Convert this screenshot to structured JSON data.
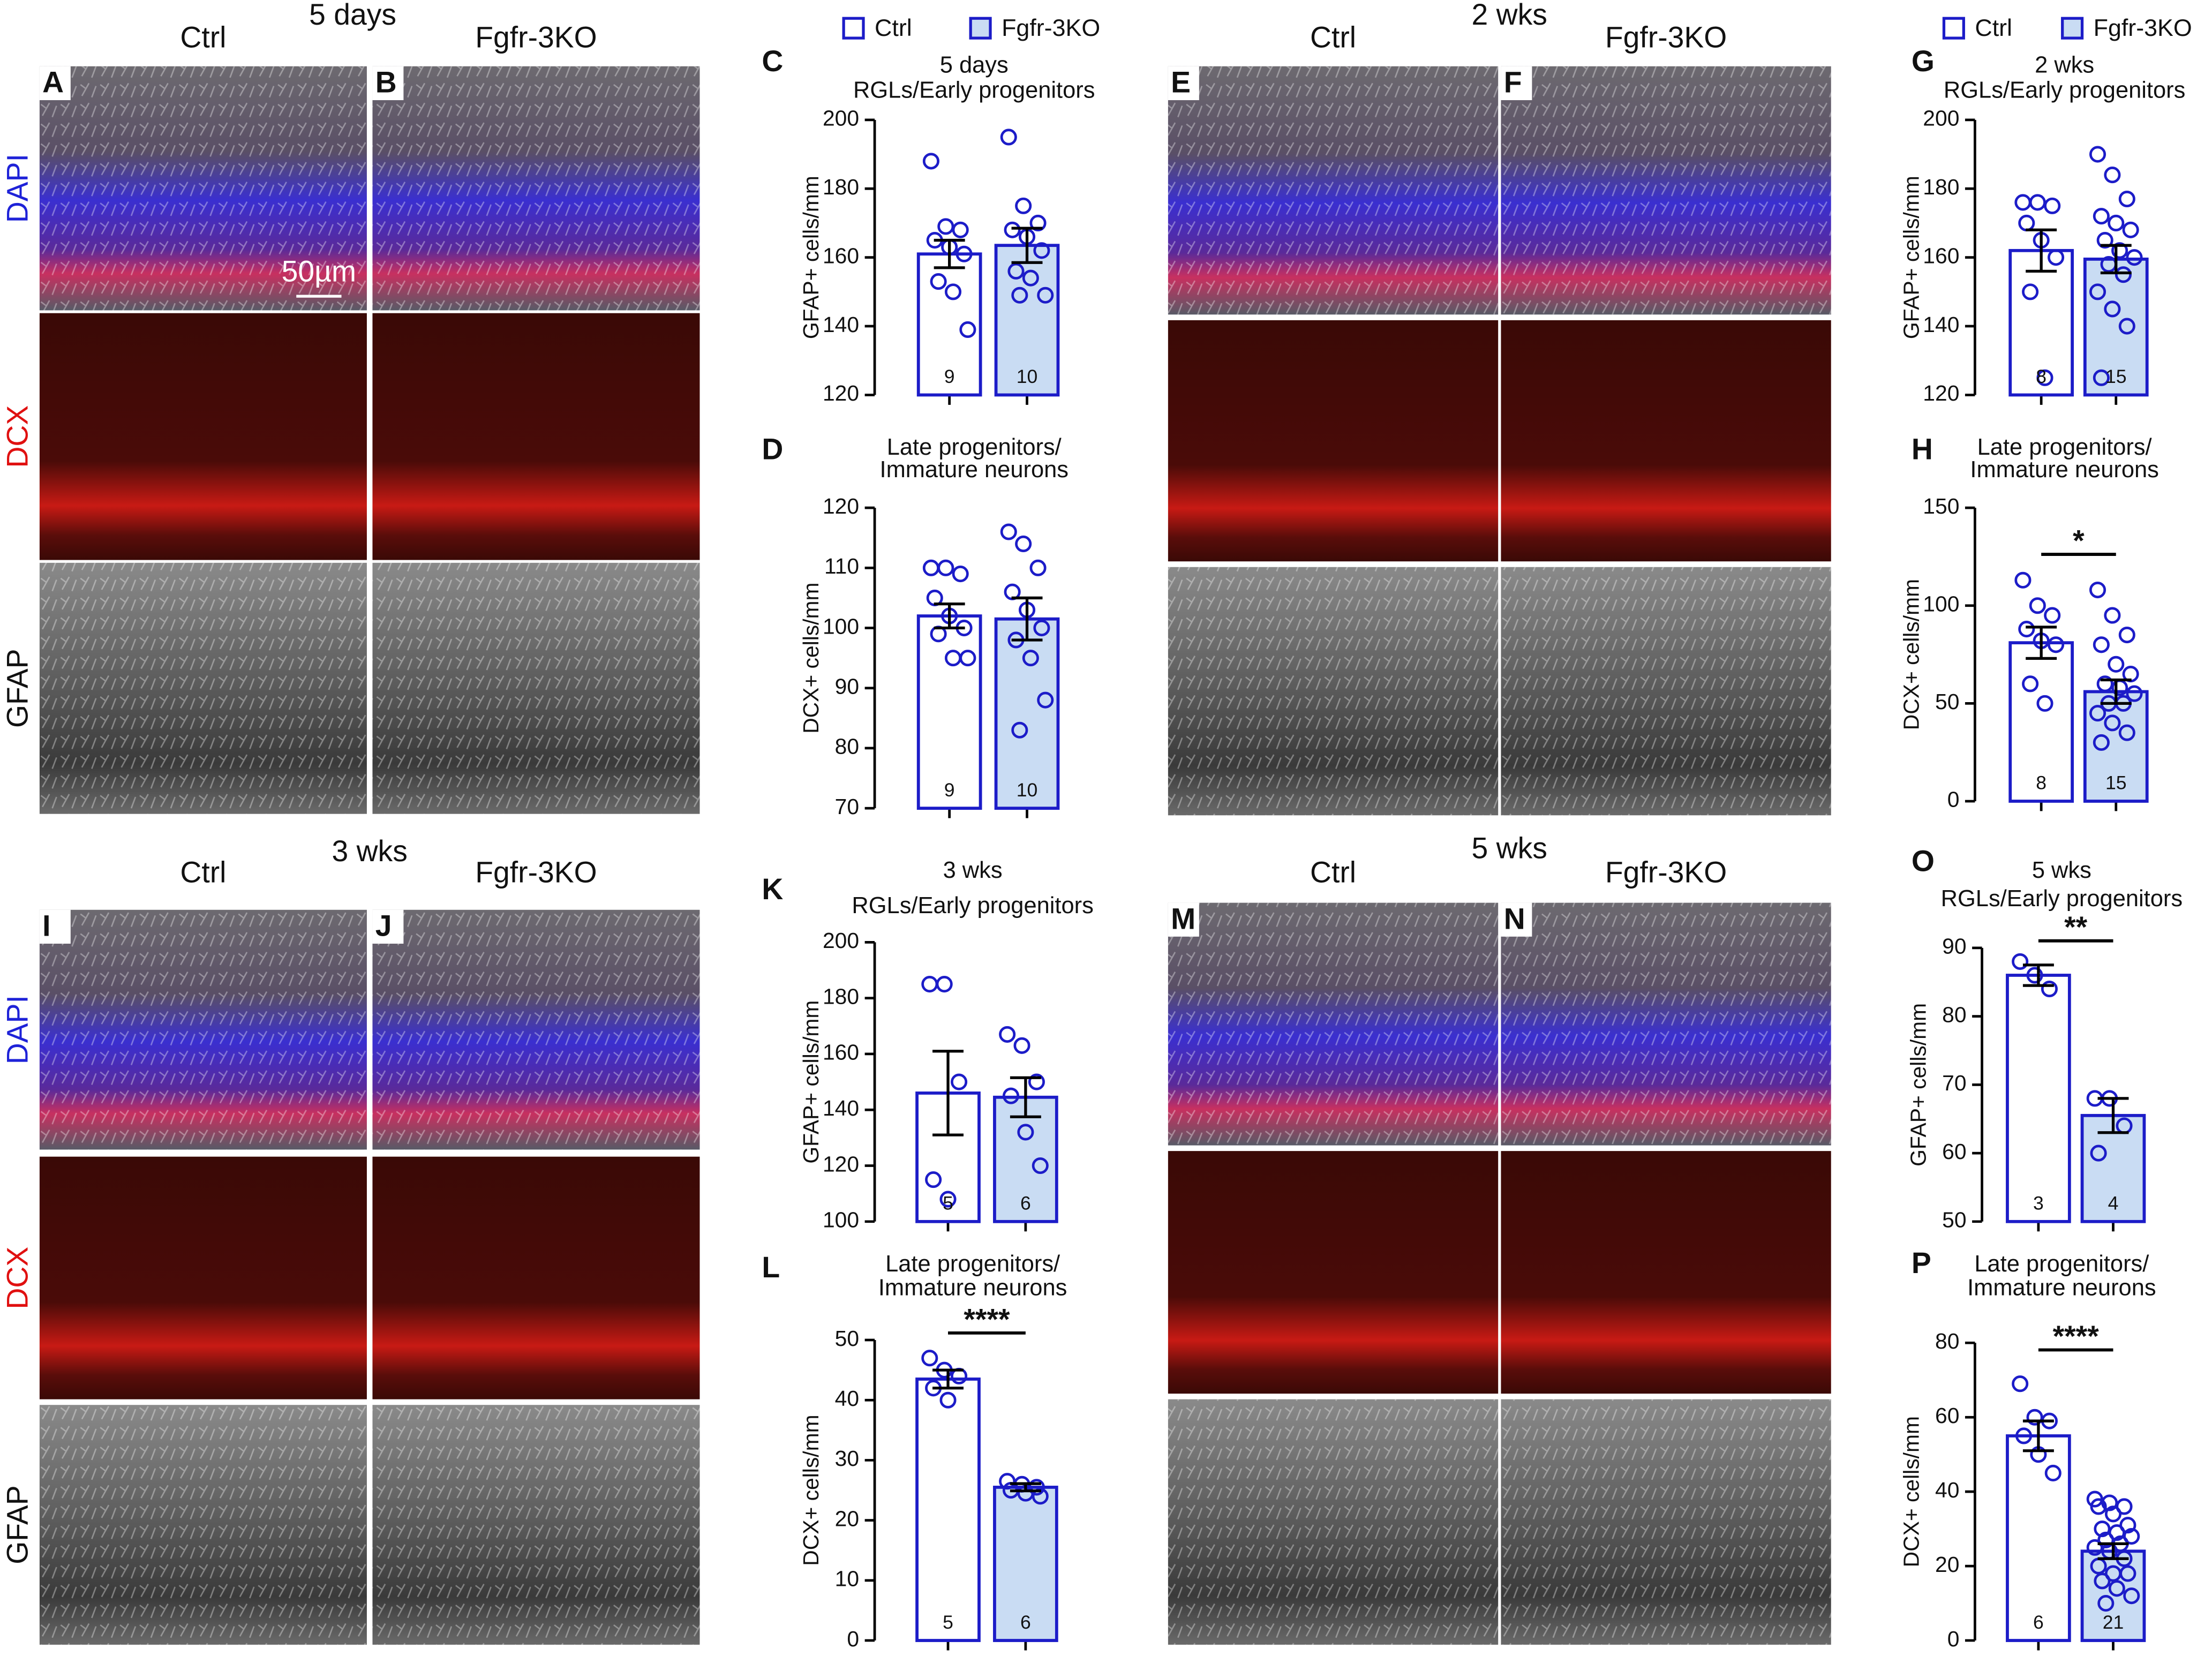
{
  "figure": {
    "groups": [
      {
        "timepoint": "5 days",
        "columns": [
          "Ctrl",
          "Fgfr-3KO"
        ],
        "letters": [
          "A",
          "B"
        ],
        "rows": [
          "DAPI",
          "DCX",
          "GFAP"
        ],
        "scale_bar": "50µm"
      },
      {
        "timepoint": "2 wks",
        "columns": [
          "Ctrl",
          "Fgfr-3KO"
        ],
        "letters": [
          "E",
          "F"
        ]
      },
      {
        "timepoint": "3 wks",
        "columns": [
          "Ctrl",
          "Fgfr-3KO"
        ],
        "letters": [
          "I",
          "J"
        ],
        "rows": [
          "DAPI",
          "DCX",
          "GFAP"
        ]
      },
      {
        "timepoint": "5 wks",
        "columns": [
          "Ctrl",
          "Fgfr-3KO"
        ],
        "letters": [
          "M",
          "N"
        ]
      }
    ]
  },
  "chart_data": [
    {
      "type": "bar",
      "panel": "C",
      "title_lines": [
        "5 days",
        "RGLs/Early progenitors"
      ],
      "ylabel": "GFAP+ cells/mm",
      "ylim": [
        120,
        200
      ],
      "yticks": [
        120,
        140,
        160,
        180,
        200
      ],
      "legend": true,
      "series": [
        {
          "name": "Ctrl",
          "color": "#ffffff",
          "values": [
            161
          ],
          "errors": [
            4
          ],
          "n": 9,
          "points": [
            188,
            169,
            168,
            165,
            163,
            161,
            153,
            150,
            139
          ]
        },
        {
          "name": "Fgfr-3KO",
          "color": "#c9dcf3",
          "values": [
            163.5
          ],
          "errors": [
            5
          ],
          "n": 10,
          "points": [
            195,
            175,
            170,
            168,
            166,
            162,
            156,
            154,
            149,
            149
          ]
        }
      ]
    },
    {
      "type": "bar",
      "panel": "D",
      "title_lines": [
        "Late progenitors/",
        "Immature neurons"
      ],
      "ylabel": "DCX+ cells/mm",
      "ylim": [
        70,
        120
      ],
      "yticks": [
        70,
        80,
        90,
        100,
        110,
        120
      ],
      "series": [
        {
          "name": "Ctrl",
          "color": "#ffffff",
          "values": [
            102
          ],
          "errors": [
            2
          ],
          "n": 9,
          "points": [
            110,
            110,
            109,
            105,
            102,
            100,
            99,
            95,
            95
          ]
        },
        {
          "name": "Fgfr-3KO",
          "color": "#c9dcf3",
          "values": [
            101.5
          ],
          "errors": [
            3.5
          ],
          "n": 10,
          "points": [
            116,
            114,
            110,
            106,
            103,
            100,
            98,
            95,
            88,
            83
          ]
        }
      ]
    },
    {
      "type": "bar",
      "panel": "G",
      "title_lines": [
        "2 wks",
        "RGLs/Early progenitors"
      ],
      "ylabel": "GFAP+ cells/mm",
      "ylim": [
        120,
        200
      ],
      "yticks": [
        120,
        140,
        160,
        180,
        200
      ],
      "legend": true,
      "series": [
        {
          "name": "Ctrl",
          "color": "#ffffff",
          "values": [
            162
          ],
          "errors": [
            6
          ],
          "n": 8,
          "points": [
            176,
            176,
            175,
            170,
            165,
            160,
            150,
            125
          ]
        },
        {
          "name": "Fgfr-3KO",
          "color": "#c9dcf3",
          "values": [
            159.5
          ],
          "errors": [
            4
          ],
          "n": 15,
          "points": [
            190,
            184,
            177,
            172,
            170,
            168,
            165,
            162,
            160,
            158,
            155,
            150,
            145,
            140,
            125
          ]
        }
      ]
    },
    {
      "type": "bar",
      "panel": "H",
      "title_lines": [
        "Late progenitors/",
        "Immature neurons"
      ],
      "ylabel": "DCX+ cells/mm",
      "ylim": [
        0,
        150
      ],
      "yticks": [
        0,
        50,
        100,
        150
      ],
      "sig": "*",
      "series": [
        {
          "name": "Ctrl",
          "color": "#ffffff",
          "values": [
            81
          ],
          "errors": [
            8
          ],
          "n": 8,
          "points": [
            113,
            100,
            95,
            88,
            82,
            80,
            60,
            50
          ]
        },
        {
          "name": "Fgfr-3KO",
          "color": "#c9dcf3",
          "values": [
            56
          ],
          "errors": [
            6
          ],
          "n": 15,
          "points": [
            108,
            95,
            85,
            80,
            70,
            65,
            60,
            58,
            55,
            50,
            50,
            45,
            40,
            35,
            30
          ]
        }
      ]
    },
    {
      "type": "bar",
      "panel": "K",
      "title_lines": [
        "3 wks",
        "RGLs/Early progenitors"
      ],
      "ylabel": "GFAP+ cells/mm",
      "ylim": [
        100,
        200
      ],
      "yticks": [
        100,
        120,
        140,
        160,
        180,
        200
      ],
      "series": [
        {
          "name": "Ctrl",
          "color": "#ffffff",
          "values": [
            146
          ],
          "errors": [
            15
          ],
          "n": 5,
          "points": [
            185,
            185,
            150,
            115,
            108
          ]
        },
        {
          "name": "Fgfr-3KO",
          "color": "#c9dcf3",
          "values": [
            144.5
          ],
          "errors": [
            7
          ],
          "n": 6,
          "points": [
            167,
            163,
            150,
            145,
            132,
            120
          ]
        }
      ]
    },
    {
      "type": "bar",
      "panel": "L",
      "title_lines": [
        "Late progenitors/",
        "Immature neurons"
      ],
      "ylabel": "DCX+ cells/mm",
      "ylim": [
        0,
        50
      ],
      "yticks": [
        0,
        10,
        20,
        30,
        40,
        50
      ],
      "sig": "****",
      "series": [
        {
          "name": "Ctrl",
          "color": "#ffffff",
          "values": [
            43.5
          ],
          "errors": [
            1.5
          ],
          "n": 5,
          "points": [
            47,
            45,
            44,
            42,
            40
          ]
        },
        {
          "name": "Fgfr-3KO",
          "color": "#c9dcf3",
          "values": [
            25.5
          ],
          "errors": [
            0.6
          ],
          "n": 6,
          "points": [
            26.5,
            26,
            25.5,
            25,
            24.5,
            24
          ]
        }
      ]
    },
    {
      "type": "bar",
      "panel": "O",
      "title_lines": [
        "5 wks",
        "RGLs/Early progenitors"
      ],
      "ylabel": "GFAP+ cells/mm",
      "ylim": [
        50,
        90
      ],
      "yticks": [
        50,
        60,
        70,
        80,
        90
      ],
      "sig": "**",
      "series": [
        {
          "name": "Ctrl",
          "color": "#ffffff",
          "values": [
            86
          ],
          "errors": [
            1.5
          ],
          "n": 3,
          "points": [
            88,
            86,
            84
          ]
        },
        {
          "name": "Fgfr-3KO",
          "color": "#c9dcf3",
          "values": [
            65.5
          ],
          "errors": [
            2.5
          ],
          "n": 4,
          "points": [
            68,
            68,
            64,
            60
          ]
        }
      ]
    },
    {
      "type": "bar",
      "panel": "P",
      "title_lines": [
        "Late progenitors/",
        "Immature neurons"
      ],
      "ylabel": "DCX+ cells/mm",
      "ylim": [
        0,
        80
      ],
      "yticks": [
        0,
        20,
        40,
        60,
        80
      ],
      "sig": "****",
      "series": [
        {
          "name": "Ctrl",
          "color": "#ffffff",
          "values": [
            55
          ],
          "errors": [
            4
          ],
          "n": 6,
          "points": [
            69,
            60,
            59,
            55,
            50,
            45
          ]
        },
        {
          "name": "Fgfr-3KO",
          "color": "#c9dcf3",
          "values": [
            24
          ],
          "errors": [
            2
          ],
          "n": 21,
          "points": [
            38,
            37,
            36,
            36,
            34,
            31,
            30,
            29,
            28,
            27,
            26,
            25,
            24,
            22,
            20,
            18,
            18,
            16,
            14,
            12,
            10
          ]
        }
      ]
    }
  ]
}
